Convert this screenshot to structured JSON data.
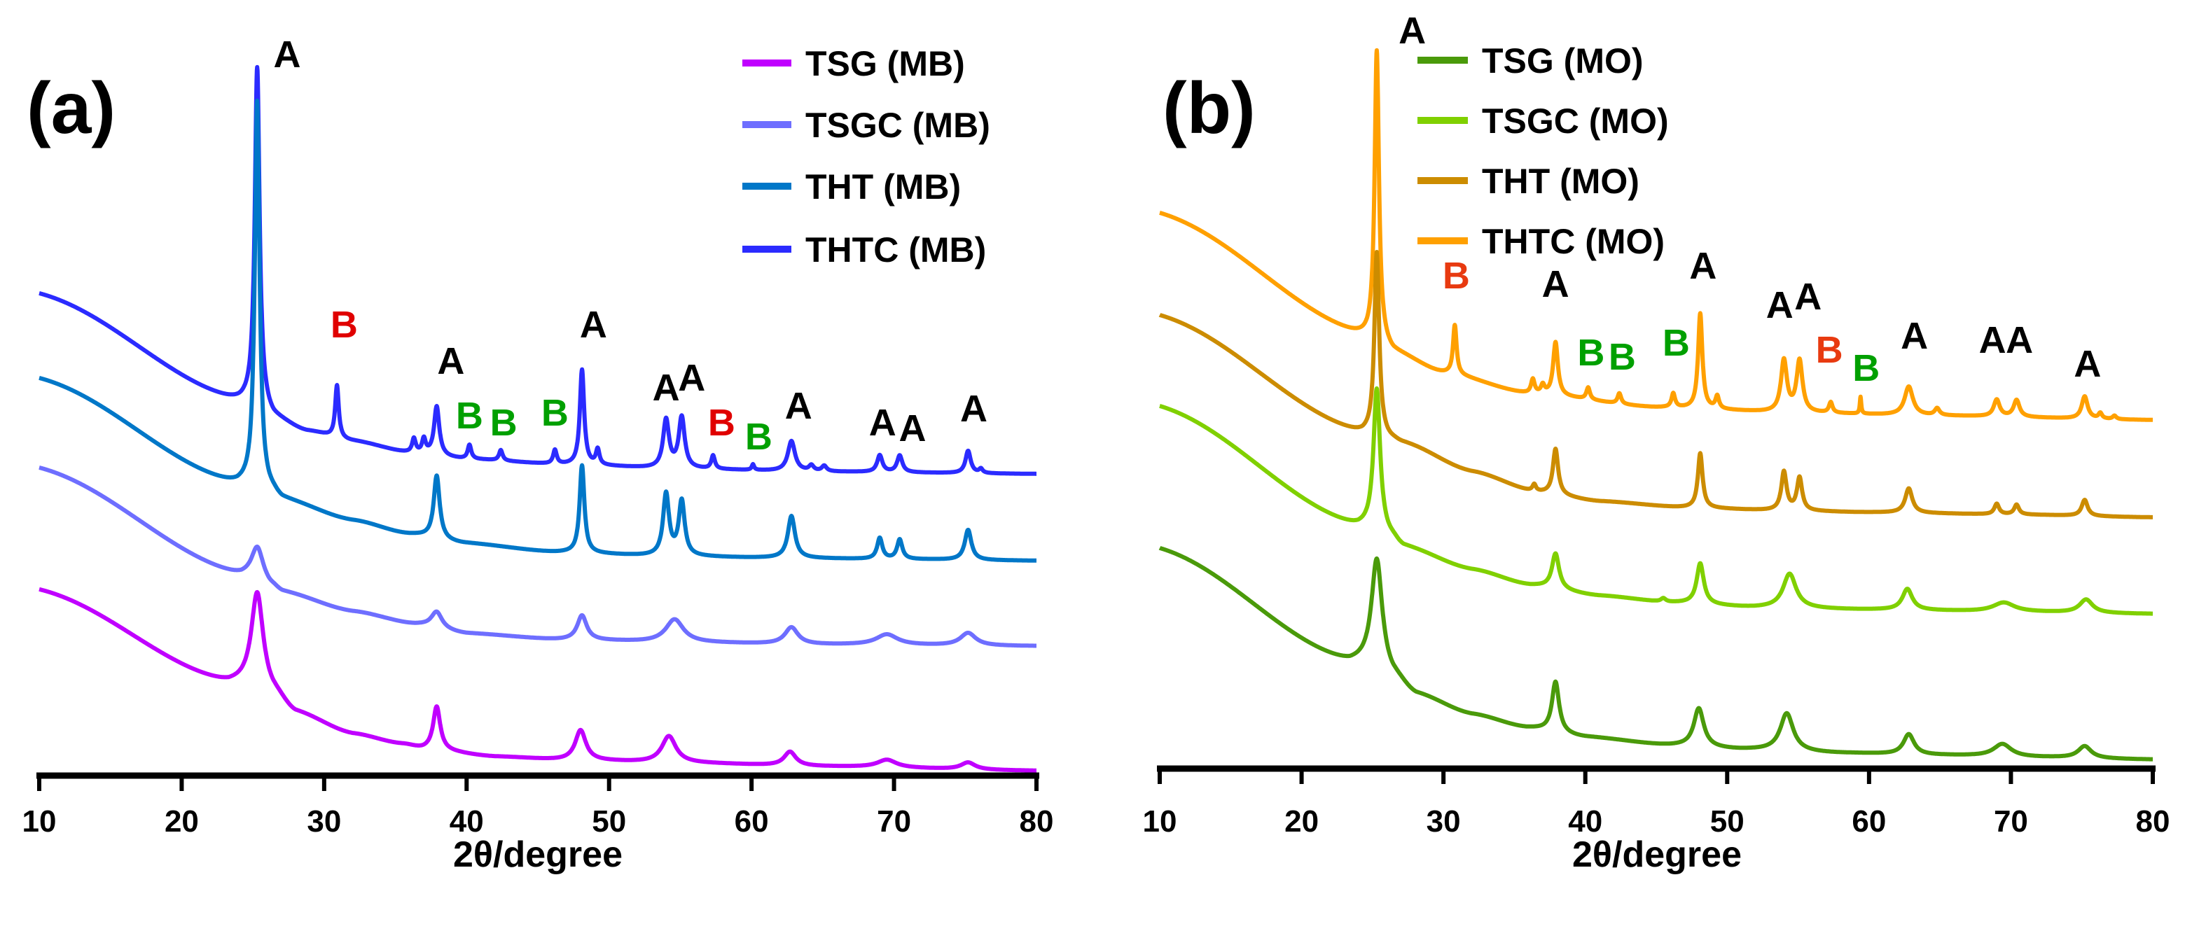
{
  "chart_data": [
    {
      "type": "line",
      "panel_label": "(a)",
      "xlabel": "2θ/degree",
      "ylabel": "",
      "xlim": [
        10,
        80
      ],
      "ylim": [
        0,
        110
      ],
      "xticks": [
        10,
        20,
        30,
        40,
        50,
        60,
        70,
        80
      ],
      "grid": false,
      "legend_position": "top-right",
      "series": [
        {
          "name": "TSG (MB)",
          "color": "#c000ff",
          "baseline": [
            [
              10,
              26.6
            ],
            [
              23.3,
              13.3
            ],
            [
              25.3,
              13
            ],
            [
              26.5,
              11.5
            ],
            [
              28,
              9
            ],
            [
              32,
              6
            ],
            [
              35.5,
              4.5
            ],
            [
              37,
              3.8
            ],
            [
              42,
              2.7
            ],
            [
              47,
              2.2
            ],
            [
              55,
              1.8
            ],
            [
              65,
              1.3
            ],
            [
              80,
              0.7
            ]
          ],
          "peaks": [
            [
              25.3,
              13.2,
              0.5
            ],
            [
              37.9,
              6.2,
              0.3
            ],
            [
              48.0,
              4.3,
              0.45
            ],
            [
              54.2,
              3.8,
              0.6
            ],
            [
              62.7,
              2.0,
              0.5
            ],
            [
              69.5,
              1.1,
              0.8
            ],
            [
              75.2,
              1.0,
              0.6
            ]
          ]
        },
        {
          "name": "TSGC (MB)",
          "color": "#6e6eff",
          "baseline": [
            [
              10,
              44
            ],
            [
              24.2,
              28.7
            ],
            [
              25.3,
              28.4
            ],
            [
              26.3,
              27
            ],
            [
              27.1,
              26.2
            ],
            [
              32,
              23.5
            ],
            [
              36.5,
              21.6
            ],
            [
              40,
              20.3
            ],
            [
              46.7,
              19.4
            ],
            [
              55,
              19
            ],
            [
              65,
              18.7
            ],
            [
              80,
              18.5
            ]
          ],
          "peaks": [
            [
              25.3,
              4.3,
              0.5
            ],
            [
              37.9,
              2.3,
              0.45
            ],
            [
              48.1,
              3.5,
              0.4
            ],
            [
              54.6,
              3.3,
              0.75
            ],
            [
              62.8,
              2.4,
              0.55
            ],
            [
              69.5,
              1.5,
              0.9
            ],
            [
              75.2,
              1.8,
              0.65
            ]
          ]
        },
        {
          "name": "THT (MB)",
          "color": "#0077c8",
          "baseline": [
            [
              10,
              56.8
            ],
            [
              23.9,
              41.7
            ],
            [
              25.3,
              41.4
            ],
            [
              26.3,
              40.4
            ],
            [
              27.1,
              39.4
            ],
            [
              32,
              36.5
            ],
            [
              36,
              34.5
            ],
            [
              39.8,
              33.2
            ],
            [
              46.4,
              31.9
            ],
            [
              53,
              31.4
            ],
            [
              61,
              31.1
            ],
            [
              70,
              30.9
            ],
            [
              80,
              30.7
            ]
          ],
          "peaks": [
            [
              25.3,
              55,
              0.2
            ],
            [
              37.9,
              9,
              0.25
            ],
            [
              48.1,
              12.5,
              0.2
            ],
            [
              54.0,
              8.8,
              0.25
            ],
            [
              55.1,
              7.8,
              0.25
            ],
            [
              62.8,
              6,
              0.3
            ],
            [
              69.0,
              3,
              0.22
            ],
            [
              70.4,
              2.8,
              0.22
            ],
            [
              75.2,
              4.3,
              0.28
            ]
          ]
        },
        {
          "name": "THTC (MB)",
          "color": "#2b2bff",
          "baseline": [
            [
              10,
              68.9
            ],
            [
              24.1,
              53.5
            ],
            [
              25.3,
              53.2
            ],
            [
              26.5,
              51
            ],
            [
              28.8,
              49.2
            ],
            [
              32,
              47.8
            ],
            [
              36.1,
              46.1
            ],
            [
              40,
              45.2
            ],
            [
              47,
              44.4
            ],
            [
              55,
              43.8
            ],
            [
              65,
              43.4
            ],
            [
              80,
              43.1
            ]
          ],
          "peaks": [
            [
              25.3,
              48,
              0.2
            ],
            [
              30.9,
              7.5,
              0.15
            ],
            [
              36.3,
              2,
              0.15
            ],
            [
              37.0,
              2,
              0.15
            ],
            [
              37.9,
              7,
              0.22
            ],
            [
              40.2,
              2,
              0.15
            ],
            [
              42.4,
              1.5,
              0.15
            ],
            [
              46.2,
              2,
              0.15
            ],
            [
              48.1,
              13.6,
              0.18
            ],
            [
              49.2,
              2.2,
              0.15
            ],
            [
              54.0,
              6.9,
              0.25
            ],
            [
              55.1,
              7.3,
              0.25
            ],
            [
              57.3,
              1.9,
              0.15
            ],
            [
              60.1,
              0.8,
              0.1
            ],
            [
              62.8,
              4.3,
              0.3
            ],
            [
              64.2,
              0.8,
              0.2
            ],
            [
              65.1,
              0.8,
              0.2
            ],
            [
              69.0,
              2.4,
              0.22
            ],
            [
              70.4,
              2.4,
              0.22
            ],
            [
              75.2,
              3.2,
              0.22
            ],
            [
              76.1,
              0.6,
              0.15
            ]
          ]
        }
      ],
      "annotations": [
        {
          "text": "A",
          "x": 27.4,
          "y": 103,
          "color": "#000000"
        },
        {
          "text": "B",
          "x": 31.4,
          "y": 64.4,
          "color": "#e00000"
        },
        {
          "text": "A",
          "x": 38.9,
          "y": 59.2,
          "color": "#000000"
        },
        {
          "text": "B",
          "x": 40.2,
          "y": 51.4,
          "color": "#00a000"
        },
        {
          "text": "B",
          "x": 42.6,
          "y": 50.4,
          "color": "#00a000"
        },
        {
          "text": "B",
          "x": 46.2,
          "y": 51.8,
          "color": "#00a000"
        },
        {
          "text": "A",
          "x": 48.9,
          "y": 64.4,
          "color": "#000000"
        },
        {
          "text": "A",
          "x": 54.0,
          "y": 55.4,
          "color": "#000000"
        },
        {
          "text": "A",
          "x": 55.8,
          "y": 56.8,
          "color": "#000000"
        },
        {
          "text": "B",
          "x": 57.9,
          "y": 50.4,
          "color": "#e00000"
        },
        {
          "text": "B",
          "x": 60.5,
          "y": 48.4,
          "color": "#00a000"
        },
        {
          "text": "A",
          "x": 63.3,
          "y": 52.8,
          "color": "#000000"
        },
        {
          "text": "A",
          "x": 69.2,
          "y": 50.4,
          "color": "#000000"
        },
        {
          "text": "A",
          "x": 71.3,
          "y": 49.6,
          "color": "#000000"
        },
        {
          "text": "A",
          "x": 75.6,
          "y": 52.4,
          "color": "#000000"
        }
      ]
    },
    {
      "type": "line",
      "panel_label": "(b)",
      "xlabel": "2θ/degree",
      "ylabel": "",
      "xlim": [
        10,
        80
      ],
      "ylim": [
        0,
        110
      ],
      "xticks": [
        10,
        20,
        30,
        40,
        50,
        60,
        70,
        80
      ],
      "grid": false,
      "legend_position": "top-right",
      "series": [
        {
          "name": "TSG (MO)",
          "color": "#4a9a0a",
          "baseline": [
            [
              10,
              31.5
            ],
            [
              23.4,
              15.3
            ],
            [
              25.3,
              15
            ],
            [
              26.5,
              13
            ],
            [
              28.1,
              10.6
            ],
            [
              32,
              7.8
            ],
            [
              36,
              5.8
            ],
            [
              40,
              4.5
            ],
            [
              46.1,
              3.3
            ],
            [
              51,
              2.7
            ],
            [
              58,
              2.2
            ],
            [
              65,
              1.9
            ],
            [
              72,
              1.6
            ],
            [
              80,
              1.3
            ]
          ],
          "peaks": [
            [
              25.3,
              15,
              0.45
            ],
            [
              37.9,
              7.2,
              0.3
            ],
            [
              48.0,
              5.5,
              0.42
            ],
            [
              54.2,
              5.4,
              0.55
            ],
            [
              62.8,
              2.9,
              0.45
            ],
            [
              69.4,
              1.8,
              0.75
            ],
            [
              75.2,
              1.7,
              0.55
            ]
          ]
        },
        {
          "name": "TSGC (MO)",
          "color": "#80d000",
          "baseline": [
            [
              10,
              51.8
            ],
            [
              24,
              34.7
            ],
            [
              25.3,
              34.3
            ],
            [
              26.3,
              33
            ],
            [
              27.2,
              31.7
            ],
            [
              32,
              28.5
            ],
            [
              36.2,
              26.2
            ],
            [
              41,
              24.7
            ],
            [
              46.1,
              23.7
            ],
            [
              52,
              23
            ],
            [
              60,
              22.7
            ],
            [
              70,
              22.4
            ],
            [
              80,
              22.1
            ]
          ],
          "peaks": [
            [
              25.3,
              20,
              0.28
            ],
            [
              37.9,
              5,
              0.3
            ],
            [
              45.5,
              0.5,
              0.2
            ],
            [
              48.1,
              5.8,
              0.3
            ],
            [
              54.4,
              4.9,
              0.55
            ],
            [
              62.7,
              3,
              0.42
            ],
            [
              69.5,
              1.3,
              0.9
            ],
            [
              75.3,
              1.9,
              0.55
            ]
          ]
        },
        {
          "name": "THT (MO)",
          "color": "#cc8c00",
          "baseline": [
            [
              10,
              64.8
            ],
            [
              24.3,
              48
            ],
            [
              25.3,
              47.8
            ],
            [
              26.3,
              47
            ],
            [
              27.2,
              46.5
            ],
            [
              32,
              42.5
            ],
            [
              36.6,
              39.5
            ],
            [
              41,
              38.2
            ],
            [
              47,
              37.3
            ],
            [
              53,
              36.9
            ],
            [
              60,
              36.6
            ],
            [
              70,
              36.3
            ],
            [
              80,
              35.9
            ]
          ],
          "peaks": [
            [
              25.3,
              26,
              0.2
            ],
            [
              36.4,
              1,
              0.15
            ],
            [
              37.9,
              6.5,
              0.22
            ],
            [
              48.1,
              7.8,
              0.2
            ],
            [
              54.0,
              5.5,
              0.22
            ],
            [
              55.1,
              4.7,
              0.22
            ],
            [
              62.8,
              3.5,
              0.3
            ],
            [
              69.0,
              1.5,
              0.2
            ],
            [
              70.4,
              1.4,
              0.2
            ],
            [
              75.2,
              2.3,
              0.25
            ]
          ]
        },
        {
          "name": "THTC (MO)",
          "color": "#ffa000",
          "baseline": [
            [
              10,
              79.4
            ],
            [
              24.6,
              61.8
            ],
            [
              25.3,
              61.6
            ],
            [
              26.5,
              59.5
            ],
            [
              30,
              56.6
            ],
            [
              36,
              53.6
            ],
            [
              45,
              51.6
            ],
            [
              55,
              50.8
            ],
            [
              65,
              50.4
            ],
            [
              80,
              49.8
            ]
          ],
          "peaks": [
            [
              25.3,
              41,
              0.18
            ],
            [
              30.8,
              7,
              0.15
            ],
            [
              36.3,
              2,
              0.15
            ],
            [
              37.0,
              1.2,
              0.15
            ],
            [
              37.9,
              7.6,
              0.2
            ],
            [
              40.2,
              1.7,
              0.15
            ],
            [
              42.4,
              1.5,
              0.15
            ],
            [
              46.2,
              2,
              0.15
            ],
            [
              48.1,
              13.6,
              0.18
            ],
            [
              49.3,
              1.8,
              0.15
            ],
            [
              54.0,
              7.4,
              0.25
            ],
            [
              55.1,
              7.4,
              0.25
            ],
            [
              57.3,
              1.5,
              0.15
            ],
            [
              59.4,
              2.4,
              0.06
            ],
            [
              62.8,
              4.1,
              0.35
            ],
            [
              64.8,
              1,
              0.2
            ],
            [
              69.0,
              2.4,
              0.25
            ],
            [
              70.4,
              2.4,
              0.25
            ],
            [
              75.2,
              3.2,
              0.25
            ],
            [
              76.3,
              0.8,
              0.15
            ],
            [
              77.3,
              0.5,
              0.15
            ]
          ]
        }
      ],
      "annotations": [
        {
          "text": "A",
          "x": 27.8,
          "y": 105.4,
          "color": "#000000"
        },
        {
          "text": "B",
          "x": 30.9,
          "y": 70.4,
          "color": "#e83a10"
        },
        {
          "text": "A",
          "x": 37.9,
          "y": 69.2,
          "color": "#000000"
        },
        {
          "text": "B",
          "x": 40.4,
          "y": 59.4,
          "color": "#00a000"
        },
        {
          "text": "B",
          "x": 42.6,
          "y": 58.8,
          "color": "#00a000"
        },
        {
          "text": "B",
          "x": 46.4,
          "y": 60.8,
          "color": "#00a000"
        },
        {
          "text": "A",
          "x": 48.3,
          "y": 71.8,
          "color": "#000000"
        },
        {
          "text": "A",
          "x": 53.7,
          "y": 66.2,
          "color": "#000000"
        },
        {
          "text": "A",
          "x": 55.7,
          "y": 67.4,
          "color": "#000000"
        },
        {
          "text": "B",
          "x": 57.2,
          "y": 59.8,
          "color": "#e83a10"
        },
        {
          "text": "B",
          "x": 59.8,
          "y": 57.2,
          "color": "#00a000"
        },
        {
          "text": "A",
          "x": 63.2,
          "y": 61.8,
          "color": "#000000"
        },
        {
          "text": "A",
          "x": 68.7,
          "y": 61.2,
          "color": "#000000"
        },
        {
          "text": "A",
          "x": 70.6,
          "y": 61.2,
          "color": "#000000"
        },
        {
          "text": "A",
          "x": 75.4,
          "y": 57.8,
          "color": "#000000"
        }
      ]
    }
  ]
}
